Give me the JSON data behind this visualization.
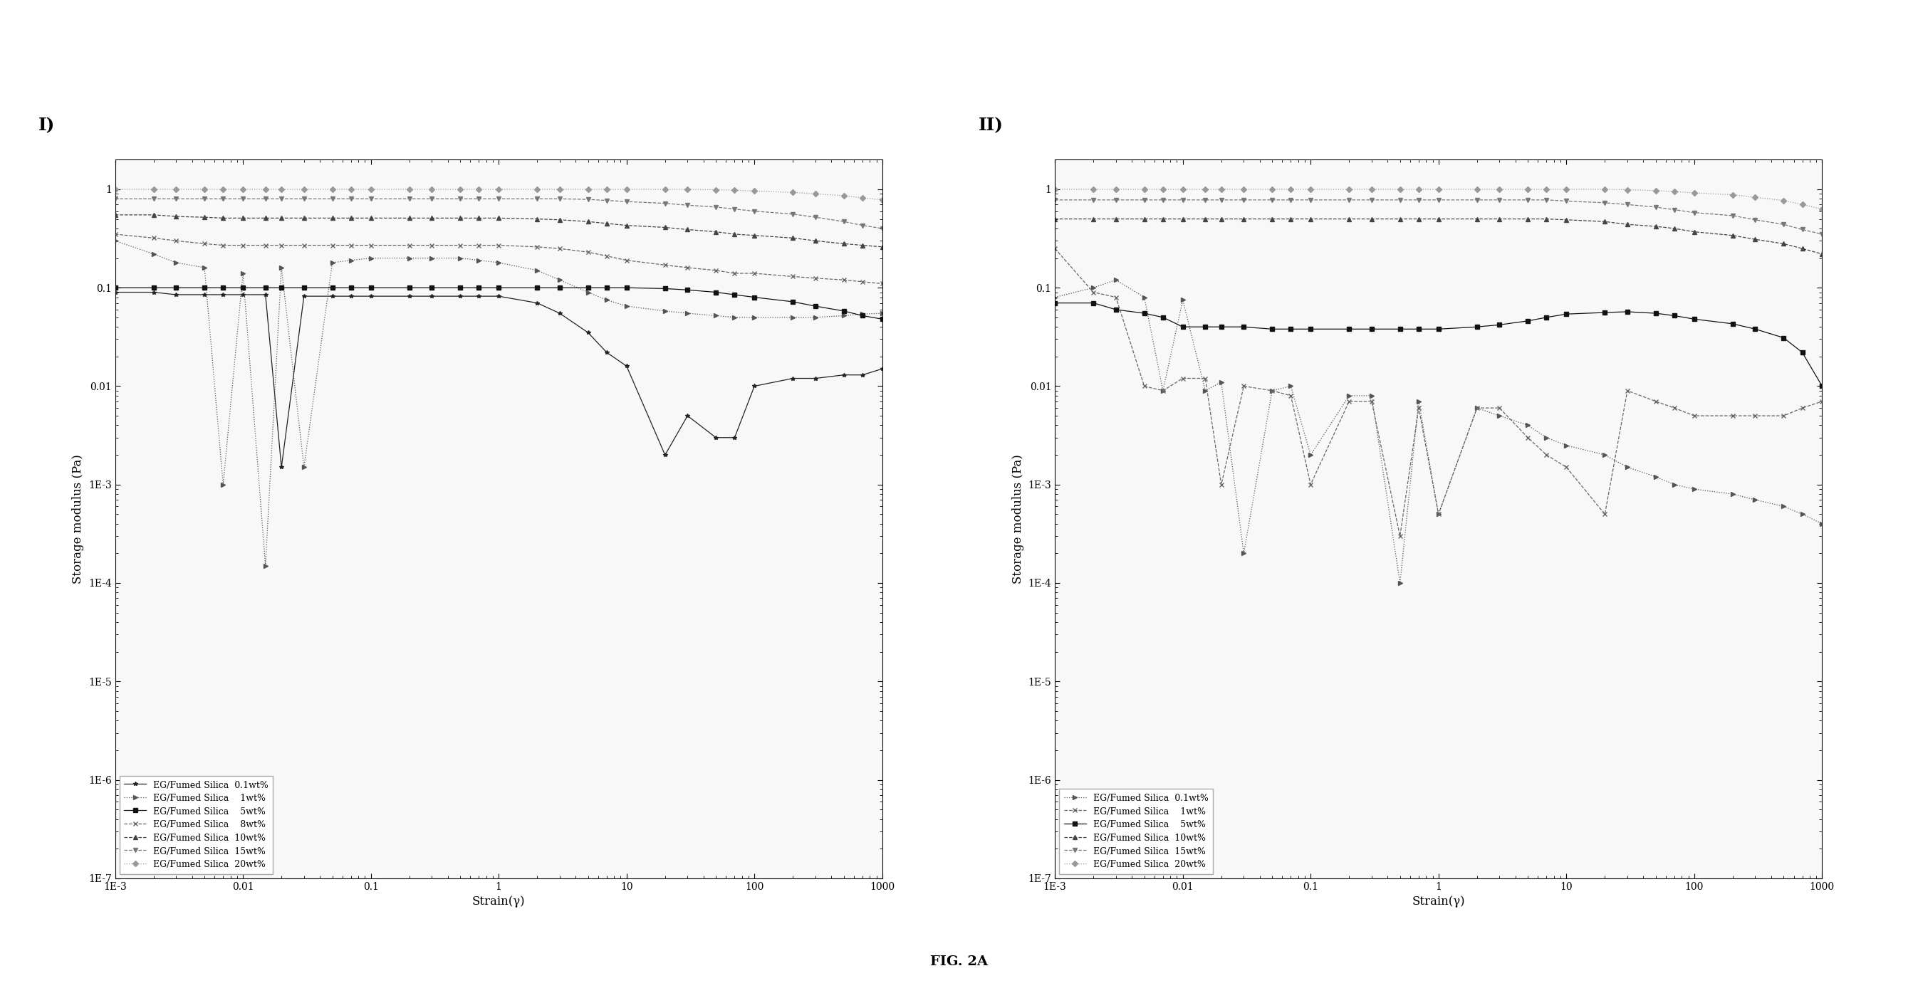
{
  "title_I": "I)",
  "title_II": "II)",
  "xlabel": "Strain(γ)",
  "ylabel": "Storage modulus (Pa)",
  "fig_label": "FIG. 2A",
  "xlim": [
    0.001,
    1000
  ],
  "ylim": [
    1e-07,
    2
  ],
  "background": "#ffffff",
  "plot1_series": [
    {
      "label": "EG/Fumed Silica  0.1wt%",
      "marker": "*",
      "linestyle": "-",
      "color": "#222222",
      "x": [
        0.001,
        0.002,
        0.003,
        0.005,
        0.007,
        0.01,
        0.015,
        0.02,
        0.03,
        0.05,
        0.07,
        0.1,
        0.2,
        0.3,
        0.5,
        0.7,
        1.0,
        2.0,
        3.0,
        5.0,
        7.0,
        10.0,
        20.0,
        30.0,
        50.0,
        70.0,
        100.0,
        200.0,
        300.0,
        500.0,
        700.0,
        1000.0
      ],
      "y": [
        0.09,
        0.09,
        0.085,
        0.085,
        0.085,
        0.085,
        0.085,
        0.0015,
        0.082,
        0.082,
        0.082,
        0.082,
        0.082,
        0.082,
        0.082,
        0.082,
        0.082,
        0.07,
        0.055,
        0.035,
        0.022,
        0.016,
        0.002,
        0.005,
        0.003,
        0.003,
        0.01,
        0.012,
        0.012,
        0.013,
        0.013,
        0.015
      ]
    },
    {
      "label": "EG/Fumed Silica    1wt%",
      "marker": ">",
      "linestyle": ":",
      "color": "#555555",
      "x": [
        0.001,
        0.002,
        0.003,
        0.005,
        0.007,
        0.01,
        0.015,
        0.02,
        0.03,
        0.05,
        0.07,
        0.1,
        0.2,
        0.3,
        0.5,
        0.7,
        1.0,
        2.0,
        3.0,
        5.0,
        7.0,
        10.0,
        20.0,
        30.0,
        50.0,
        70.0,
        100.0,
        200.0,
        300.0,
        500.0,
        700.0,
        1000.0
      ],
      "y": [
        0.3,
        0.22,
        0.18,
        0.16,
        0.001,
        0.14,
        0.00015,
        0.16,
        0.0015,
        0.18,
        0.19,
        0.2,
        0.2,
        0.2,
        0.2,
        0.19,
        0.18,
        0.15,
        0.12,
        0.09,
        0.075,
        0.065,
        0.058,
        0.055,
        0.052,
        0.05,
        0.05,
        0.05,
        0.05,
        0.052,
        0.054,
        0.055
      ]
    },
    {
      "label": "EG/Fumed Silica    5wt%",
      "marker": "s",
      "linestyle": "-",
      "color": "#111111",
      "x": [
        0.001,
        0.002,
        0.003,
        0.005,
        0.007,
        0.01,
        0.015,
        0.02,
        0.03,
        0.05,
        0.07,
        0.1,
        0.2,
        0.3,
        0.5,
        0.7,
        1.0,
        2.0,
        3.0,
        5.0,
        7.0,
        10.0,
        20.0,
        30.0,
        50.0,
        70.0,
        100.0,
        200.0,
        300.0,
        500.0,
        700.0,
        1000.0
      ],
      "y": [
        0.1,
        0.1,
        0.1,
        0.1,
        0.1,
        0.1,
        0.1,
        0.1,
        0.1,
        0.1,
        0.1,
        0.1,
        0.1,
        0.1,
        0.1,
        0.1,
        0.1,
        0.1,
        0.1,
        0.1,
        0.1,
        0.1,
        0.098,
        0.095,
        0.09,
        0.085,
        0.08,
        0.072,
        0.065,
        0.058,
        0.052,
        0.048
      ]
    },
    {
      "label": "EG/Fumed Silica    8wt%",
      "marker": "x",
      "linestyle": "--",
      "color": "#666666",
      "x": [
        0.001,
        0.002,
        0.003,
        0.005,
        0.007,
        0.01,
        0.015,
        0.02,
        0.03,
        0.05,
        0.07,
        0.1,
        0.2,
        0.3,
        0.5,
        0.7,
        1.0,
        2.0,
        3.0,
        5.0,
        7.0,
        10.0,
        20.0,
        30.0,
        50.0,
        70.0,
        100.0,
        200.0,
        300.0,
        500.0,
        700.0,
        1000.0
      ],
      "y": [
        0.35,
        0.32,
        0.3,
        0.28,
        0.27,
        0.27,
        0.27,
        0.27,
        0.27,
        0.27,
        0.27,
        0.27,
        0.27,
        0.27,
        0.27,
        0.27,
        0.27,
        0.26,
        0.25,
        0.23,
        0.21,
        0.19,
        0.17,
        0.16,
        0.15,
        0.14,
        0.14,
        0.13,
        0.125,
        0.12,
        0.115,
        0.11
      ]
    },
    {
      "label": "EG/Fumed Silica  10wt%",
      "marker": "^",
      "linestyle": "--",
      "color": "#444444",
      "x": [
        0.001,
        0.002,
        0.003,
        0.005,
        0.007,
        0.01,
        0.015,
        0.02,
        0.03,
        0.05,
        0.07,
        0.1,
        0.2,
        0.3,
        0.5,
        0.7,
        1.0,
        2.0,
        3.0,
        5.0,
        7.0,
        10.0,
        20.0,
        30.0,
        50.0,
        70.0,
        100.0,
        200.0,
        300.0,
        500.0,
        700.0,
        1000.0
      ],
      "y": [
        0.55,
        0.55,
        0.53,
        0.52,
        0.51,
        0.51,
        0.51,
        0.51,
        0.51,
        0.51,
        0.51,
        0.51,
        0.51,
        0.51,
        0.51,
        0.51,
        0.51,
        0.5,
        0.49,
        0.47,
        0.45,
        0.43,
        0.41,
        0.39,
        0.37,
        0.35,
        0.34,
        0.32,
        0.3,
        0.28,
        0.27,
        0.26
      ]
    },
    {
      "label": "EG/Fumed Silica  15wt%",
      "marker": "v",
      "linestyle": "--",
      "color": "#777777",
      "x": [
        0.001,
        0.002,
        0.003,
        0.005,
        0.007,
        0.01,
        0.015,
        0.02,
        0.03,
        0.05,
        0.07,
        0.1,
        0.2,
        0.3,
        0.5,
        0.7,
        1.0,
        2.0,
        3.0,
        5.0,
        7.0,
        10.0,
        20.0,
        30.0,
        50.0,
        70.0,
        100.0,
        200.0,
        300.0,
        500.0,
        700.0,
        1000.0
      ],
      "y": [
        0.8,
        0.8,
        0.8,
        0.8,
        0.8,
        0.8,
        0.8,
        0.8,
        0.8,
        0.8,
        0.8,
        0.8,
        0.8,
        0.8,
        0.8,
        0.8,
        0.8,
        0.8,
        0.8,
        0.79,
        0.77,
        0.75,
        0.72,
        0.69,
        0.66,
        0.63,
        0.6,
        0.56,
        0.52,
        0.47,
        0.43,
        0.4
      ]
    },
    {
      "label": "EG/Fumed Silica  20wt%",
      "marker": "D",
      "linestyle": ":",
      "color": "#999999",
      "x": [
        0.001,
        0.002,
        0.003,
        0.005,
        0.007,
        0.01,
        0.015,
        0.02,
        0.03,
        0.05,
        0.07,
        0.1,
        0.2,
        0.3,
        0.5,
        0.7,
        1.0,
        2.0,
        3.0,
        5.0,
        7.0,
        10.0,
        20.0,
        30.0,
        50.0,
        70.0,
        100.0,
        200.0,
        300.0,
        500.0,
        700.0,
        1000.0
      ],
      "y": [
        1.0,
        1.0,
        1.0,
        1.0,
        1.0,
        1.0,
        1.0,
        1.0,
        1.0,
        1.0,
        1.0,
        1.0,
        1.0,
        1.0,
        1.0,
        1.0,
        1.0,
        1.0,
        1.0,
        1.0,
        1.0,
        1.0,
        1.0,
        1.0,
        0.99,
        0.98,
        0.96,
        0.93,
        0.9,
        0.86,
        0.82,
        0.78
      ]
    }
  ],
  "plot2_series": [
    {
      "label": "EG/Fumed Silica  0.1wt%",
      "marker": ">",
      "linestyle": ":",
      "color": "#555555",
      "x": [
        0.001,
        0.002,
        0.003,
        0.005,
        0.007,
        0.01,
        0.015,
        0.02,
        0.03,
        0.05,
        0.07,
        0.1,
        0.2,
        0.3,
        0.5,
        0.7,
        1.0,
        2.0,
        3.0,
        5.0,
        7.0,
        10.0,
        20.0,
        30.0,
        50.0,
        70.0,
        100.0,
        200.0,
        300.0,
        500.0,
        700.0,
        1000.0
      ],
      "y": [
        0.08,
        0.1,
        0.12,
        0.08,
        0.009,
        0.075,
        0.009,
        0.011,
        0.0002,
        0.009,
        0.01,
        0.002,
        0.008,
        0.008,
        0.0001,
        0.007,
        0.0005,
        0.006,
        0.005,
        0.004,
        0.003,
        0.0025,
        0.002,
        0.0015,
        0.0012,
        0.001,
        0.0009,
        0.0008,
        0.0007,
        0.0006,
        0.0005,
        0.0004
      ]
    },
    {
      "label": "EG/Fumed Silica    1wt%",
      "marker": "x",
      "linestyle": "--",
      "color": "#666666",
      "x": [
        0.001,
        0.002,
        0.003,
        0.005,
        0.007,
        0.01,
        0.015,
        0.02,
        0.03,
        0.05,
        0.07,
        0.1,
        0.2,
        0.3,
        0.5,
        0.7,
        1.0,
        2.0,
        3.0,
        5.0,
        7.0,
        10.0,
        20.0,
        30.0,
        50.0,
        70.0,
        100.0,
        200.0,
        300.0,
        500.0,
        700.0,
        1000.0
      ],
      "y": [
        0.25,
        0.09,
        0.08,
        0.01,
        0.009,
        0.012,
        0.012,
        0.001,
        0.01,
        0.009,
        0.008,
        0.001,
        0.007,
        0.007,
        0.0003,
        0.006,
        0.0005,
        0.006,
        0.006,
        0.003,
        0.002,
        0.0015,
        0.0005,
        0.009,
        0.007,
        0.006,
        0.005,
        0.005,
        0.005,
        0.005,
        0.006,
        0.007
      ]
    },
    {
      "label": "EG/Fumed Silica    5wt%",
      "marker": "s",
      "linestyle": "-",
      "color": "#111111",
      "x": [
        0.001,
        0.002,
        0.003,
        0.005,
        0.007,
        0.01,
        0.015,
        0.02,
        0.03,
        0.05,
        0.07,
        0.1,
        0.2,
        0.3,
        0.5,
        0.7,
        1.0,
        2.0,
        3.0,
        5.0,
        7.0,
        10.0,
        20.0,
        30.0,
        50.0,
        70.0,
        100.0,
        200.0,
        300.0,
        500.0,
        700.0,
        1000.0
      ],
      "y": [
        0.07,
        0.07,
        0.06,
        0.055,
        0.05,
        0.04,
        0.04,
        0.04,
        0.04,
        0.038,
        0.038,
        0.038,
        0.038,
        0.038,
        0.038,
        0.038,
        0.038,
        0.04,
        0.042,
        0.046,
        0.05,
        0.054,
        0.056,
        0.057,
        0.055,
        0.052,
        0.048,
        0.043,
        0.038,
        0.031,
        0.022,
        0.01
      ]
    },
    {
      "label": "EG/Fumed Silica  10wt%",
      "marker": "^",
      "linestyle": "--",
      "color": "#444444",
      "x": [
        0.001,
        0.002,
        0.003,
        0.005,
        0.007,
        0.01,
        0.015,
        0.02,
        0.03,
        0.05,
        0.07,
        0.1,
        0.2,
        0.3,
        0.5,
        0.7,
        1.0,
        2.0,
        3.0,
        5.0,
        7.0,
        10.0,
        20.0,
        30.0,
        50.0,
        70.0,
        100.0,
        200.0,
        300.0,
        500.0,
        700.0,
        1000.0
      ],
      "y": [
        0.5,
        0.5,
        0.5,
        0.5,
        0.5,
        0.5,
        0.5,
        0.5,
        0.5,
        0.5,
        0.5,
        0.5,
        0.5,
        0.5,
        0.5,
        0.5,
        0.5,
        0.5,
        0.5,
        0.5,
        0.5,
        0.49,
        0.47,
        0.44,
        0.42,
        0.4,
        0.37,
        0.34,
        0.31,
        0.28,
        0.25,
        0.22
      ]
    },
    {
      "label": "EG/Fumed Silica  15wt%",
      "marker": "v",
      "linestyle": "--",
      "color": "#777777",
      "x": [
        0.001,
        0.002,
        0.003,
        0.005,
        0.007,
        0.01,
        0.015,
        0.02,
        0.03,
        0.05,
        0.07,
        0.1,
        0.2,
        0.3,
        0.5,
        0.7,
        1.0,
        2.0,
        3.0,
        5.0,
        7.0,
        10.0,
        20.0,
        30.0,
        50.0,
        70.0,
        100.0,
        200.0,
        300.0,
        500.0,
        700.0,
        1000.0
      ],
      "y": [
        0.78,
        0.78,
        0.78,
        0.78,
        0.78,
        0.78,
        0.78,
        0.78,
        0.78,
        0.78,
        0.78,
        0.78,
        0.78,
        0.78,
        0.78,
        0.78,
        0.78,
        0.78,
        0.78,
        0.78,
        0.78,
        0.76,
        0.73,
        0.7,
        0.66,
        0.62,
        0.58,
        0.54,
        0.49,
        0.44,
        0.39,
        0.35
      ]
    },
    {
      "label": "EG/Fumed Silica  20wt%",
      "marker": "D",
      "linestyle": ":",
      "color": "#999999",
      "x": [
        0.001,
        0.002,
        0.003,
        0.005,
        0.007,
        0.01,
        0.015,
        0.02,
        0.03,
        0.05,
        0.07,
        0.1,
        0.2,
        0.3,
        0.5,
        0.7,
        1.0,
        2.0,
        3.0,
        5.0,
        7.0,
        10.0,
        20.0,
        30.0,
        50.0,
        70.0,
        100.0,
        200.0,
        300.0,
        500.0,
        700.0,
        1000.0
      ],
      "y": [
        1.0,
        1.0,
        1.0,
        1.0,
        1.0,
        1.0,
        1.0,
        1.0,
        1.0,
        1.0,
        1.0,
        1.0,
        1.0,
        1.0,
        1.0,
        1.0,
        1.0,
        1.0,
        1.0,
        1.0,
        1.0,
        1.0,
        1.0,
        0.99,
        0.97,
        0.95,
        0.92,
        0.88,
        0.83,
        0.77,
        0.7,
        0.63
      ]
    }
  ],
  "xtick_labels": [
    "1E-3",
    "0.01",
    "0.1",
    "1",
    "10",
    "100",
    "1000"
  ],
  "xtick_vals": [
    0.001,
    0.01,
    0.1,
    1,
    10,
    100,
    1000
  ],
  "ytick_labels": [
    "1E-7",
    "1E-6",
    "1E-5",
    "1E-4",
    "1E-3",
    "0.01",
    "0.1",
    "1"
  ],
  "ytick_vals": [
    1e-07,
    1e-06,
    1e-05,
    0.0001,
    0.001,
    0.01,
    0.1,
    1
  ]
}
